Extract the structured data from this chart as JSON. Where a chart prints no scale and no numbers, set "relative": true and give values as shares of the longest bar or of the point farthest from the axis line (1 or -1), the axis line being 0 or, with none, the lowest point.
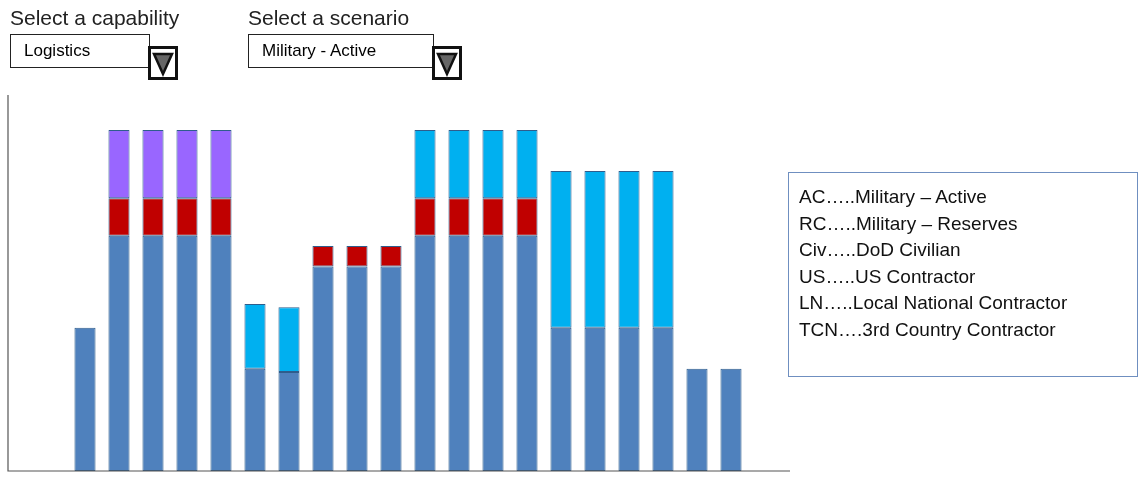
{
  "chart_data": {
    "type": "bar",
    "relative": true,
    "stacked": true,
    "legend": false,
    "grid": false,
    "categories": [
      null,
      null,
      null,
      null,
      null,
      null,
      null,
      null,
      null,
      null,
      null,
      null,
      null,
      null,
      null,
      null,
      null,
      null,
      null,
      null
    ],
    "series": [
      {
        "color": "#4f81bd",
        "values": [
          0.42,
          0.69,
          0.69,
          0.69,
          0.69,
          0.3,
          0.29,
          0.6,
          0.6,
          0.6,
          0.69,
          0.69,
          0.69,
          0.69,
          0.42,
          0.42,
          0.42,
          0.42,
          0.3,
          0.3
        ]
      },
      {
        "color": "#c00000",
        "values": [
          null,
          0.11,
          0.11,
          0.11,
          0.11,
          null,
          null,
          0.06,
          0.06,
          0.06,
          0.11,
          0.11,
          0.11,
          0.11,
          null,
          null,
          null,
          null,
          null,
          null
        ]
      },
      {
        "color": "#9966ff",
        "values": [
          null,
          0.2,
          0.2,
          0.2,
          0.2,
          null,
          null,
          null,
          null,
          null,
          null,
          null,
          null,
          null,
          null,
          null,
          null,
          null,
          null,
          null
        ]
      },
      {
        "color": "#00b0f0",
        "values": [
          null,
          null,
          null,
          null,
          null,
          0.19,
          0.19,
          null,
          null,
          null,
          0.2,
          0.2,
          0.2,
          0.2,
          0.46,
          0.46,
          0.46,
          0.46,
          null,
          null
        ]
      }
    ],
    "annotations": [
      "Select a capability",
      "Logistics",
      "Select a scenario",
      "Military - Active",
      "AC…..Military – Active",
      "RC…..Military – Reserves",
      "Civ…..DoD Civilian",
      "US…..US Contractor",
      "LN…..Local National Contractor",
      "TCN….3rd Country Contractor"
    ]
  }
}
